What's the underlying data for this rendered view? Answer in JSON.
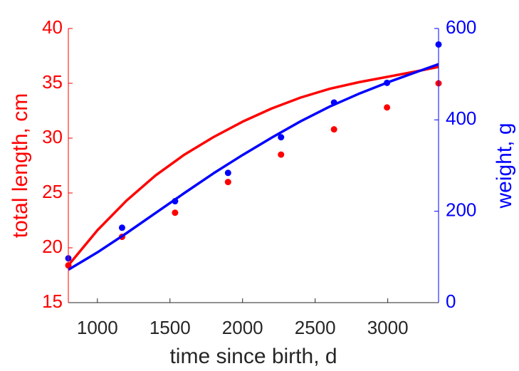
{
  "chart_data": {
    "type": "scatter",
    "xlabel": "time since birth, d",
    "ylabel_left": "total length, cm",
    "ylabel_right": "weight, g",
    "xlim": [
      800,
      3350
    ],
    "ylim_left": [
      15,
      40
    ],
    "ylim_right": [
      0,
      600
    ],
    "xticks": [
      1000,
      1500,
      2000,
      2500,
      3000
    ],
    "yticks_left": [
      15,
      20,
      25,
      30,
      35,
      40
    ],
    "yticks_right": [
      0,
      200,
      400,
      600
    ],
    "grid": false,
    "colors": {
      "left": "#ff0000",
      "right": "#0000ff"
    },
    "series": [
      {
        "axis": "left",
        "kind": "points",
        "color": "#ff0000",
        "x": [
          800,
          1170,
          1535,
          1900,
          2265,
          2630,
          2995,
          3350
        ],
        "y": [
          18.4,
          21.0,
          23.2,
          26.0,
          28.5,
          30.8,
          32.8,
          35.0
        ]
      },
      {
        "axis": "left",
        "kind": "line",
        "color": "#ff0000",
        "x": [
          800,
          1000,
          1200,
          1400,
          1600,
          1800,
          2000,
          2200,
          2400,
          2600,
          2800,
          3000,
          3200,
          3350
        ],
        "y": [
          18.4,
          21.6,
          24.3,
          26.6,
          28.5,
          30.1,
          31.5,
          32.7,
          33.7,
          34.5,
          35.1,
          35.6,
          36.1,
          36.5
        ]
      },
      {
        "axis": "right",
        "kind": "points",
        "color": "#0000ff",
        "x": [
          800,
          1170,
          1535,
          1900,
          2265,
          2630,
          2995,
          3350
        ],
        "y": [
          97,
          164,
          222,
          284,
          362,
          438,
          481,
          565
        ]
      },
      {
        "axis": "right",
        "kind": "line",
        "color": "#0000ff",
        "x": [
          800,
          1000,
          1200,
          1400,
          1600,
          1800,
          2000,
          2200,
          2400,
          2600,
          2800,
          3000,
          3200,
          3350
        ],
        "y": [
          72,
          110,
          152,
          196,
          240,
          283,
          323,
          361,
          397,
          429,
          457,
          482,
          505,
          522
        ]
      }
    ]
  }
}
